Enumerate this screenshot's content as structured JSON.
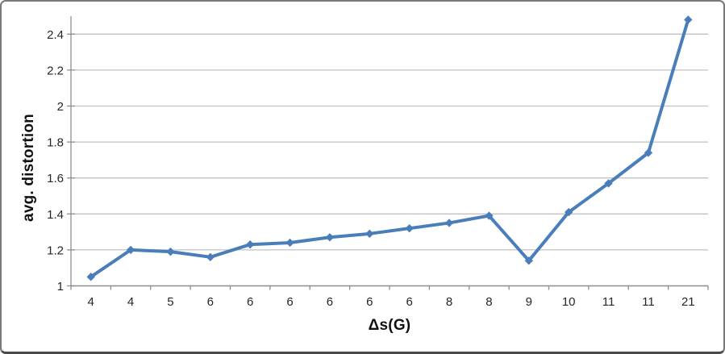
{
  "chart_data": {
    "type": "line",
    "title": "",
    "xlabel": "Δs(G)",
    "ylabel": "avg. distortion",
    "categories": [
      "4",
      "4",
      "5",
      "6",
      "6",
      "6",
      "6",
      "6",
      "6",
      "8",
      "8",
      "9",
      "10",
      "11",
      "11",
      "21"
    ],
    "series": [
      {
        "name": "avg. distortion",
        "values": [
          1.05,
          1.2,
          1.19,
          1.16,
          1.23,
          1.24,
          1.27,
          1.29,
          1.32,
          1.35,
          1.39,
          1.14,
          1.41,
          1.57,
          1.74,
          2.48
        ]
      }
    ],
    "ylim": [
      1.0,
      2.5
    ],
    "ytick_interval": 0.2,
    "yticks": [
      "1",
      "1.2",
      "1.4",
      "1.6",
      "1.8",
      "2",
      "2.2",
      "2.4"
    ],
    "grid": "horizontal",
    "legend": "none",
    "marker": "diamond",
    "colors": {
      "series_line": "#4A7EBB",
      "gridline": "#c2c2c2",
      "axis": "#8e8e8e",
      "tick_label": "#262626"
    }
  }
}
